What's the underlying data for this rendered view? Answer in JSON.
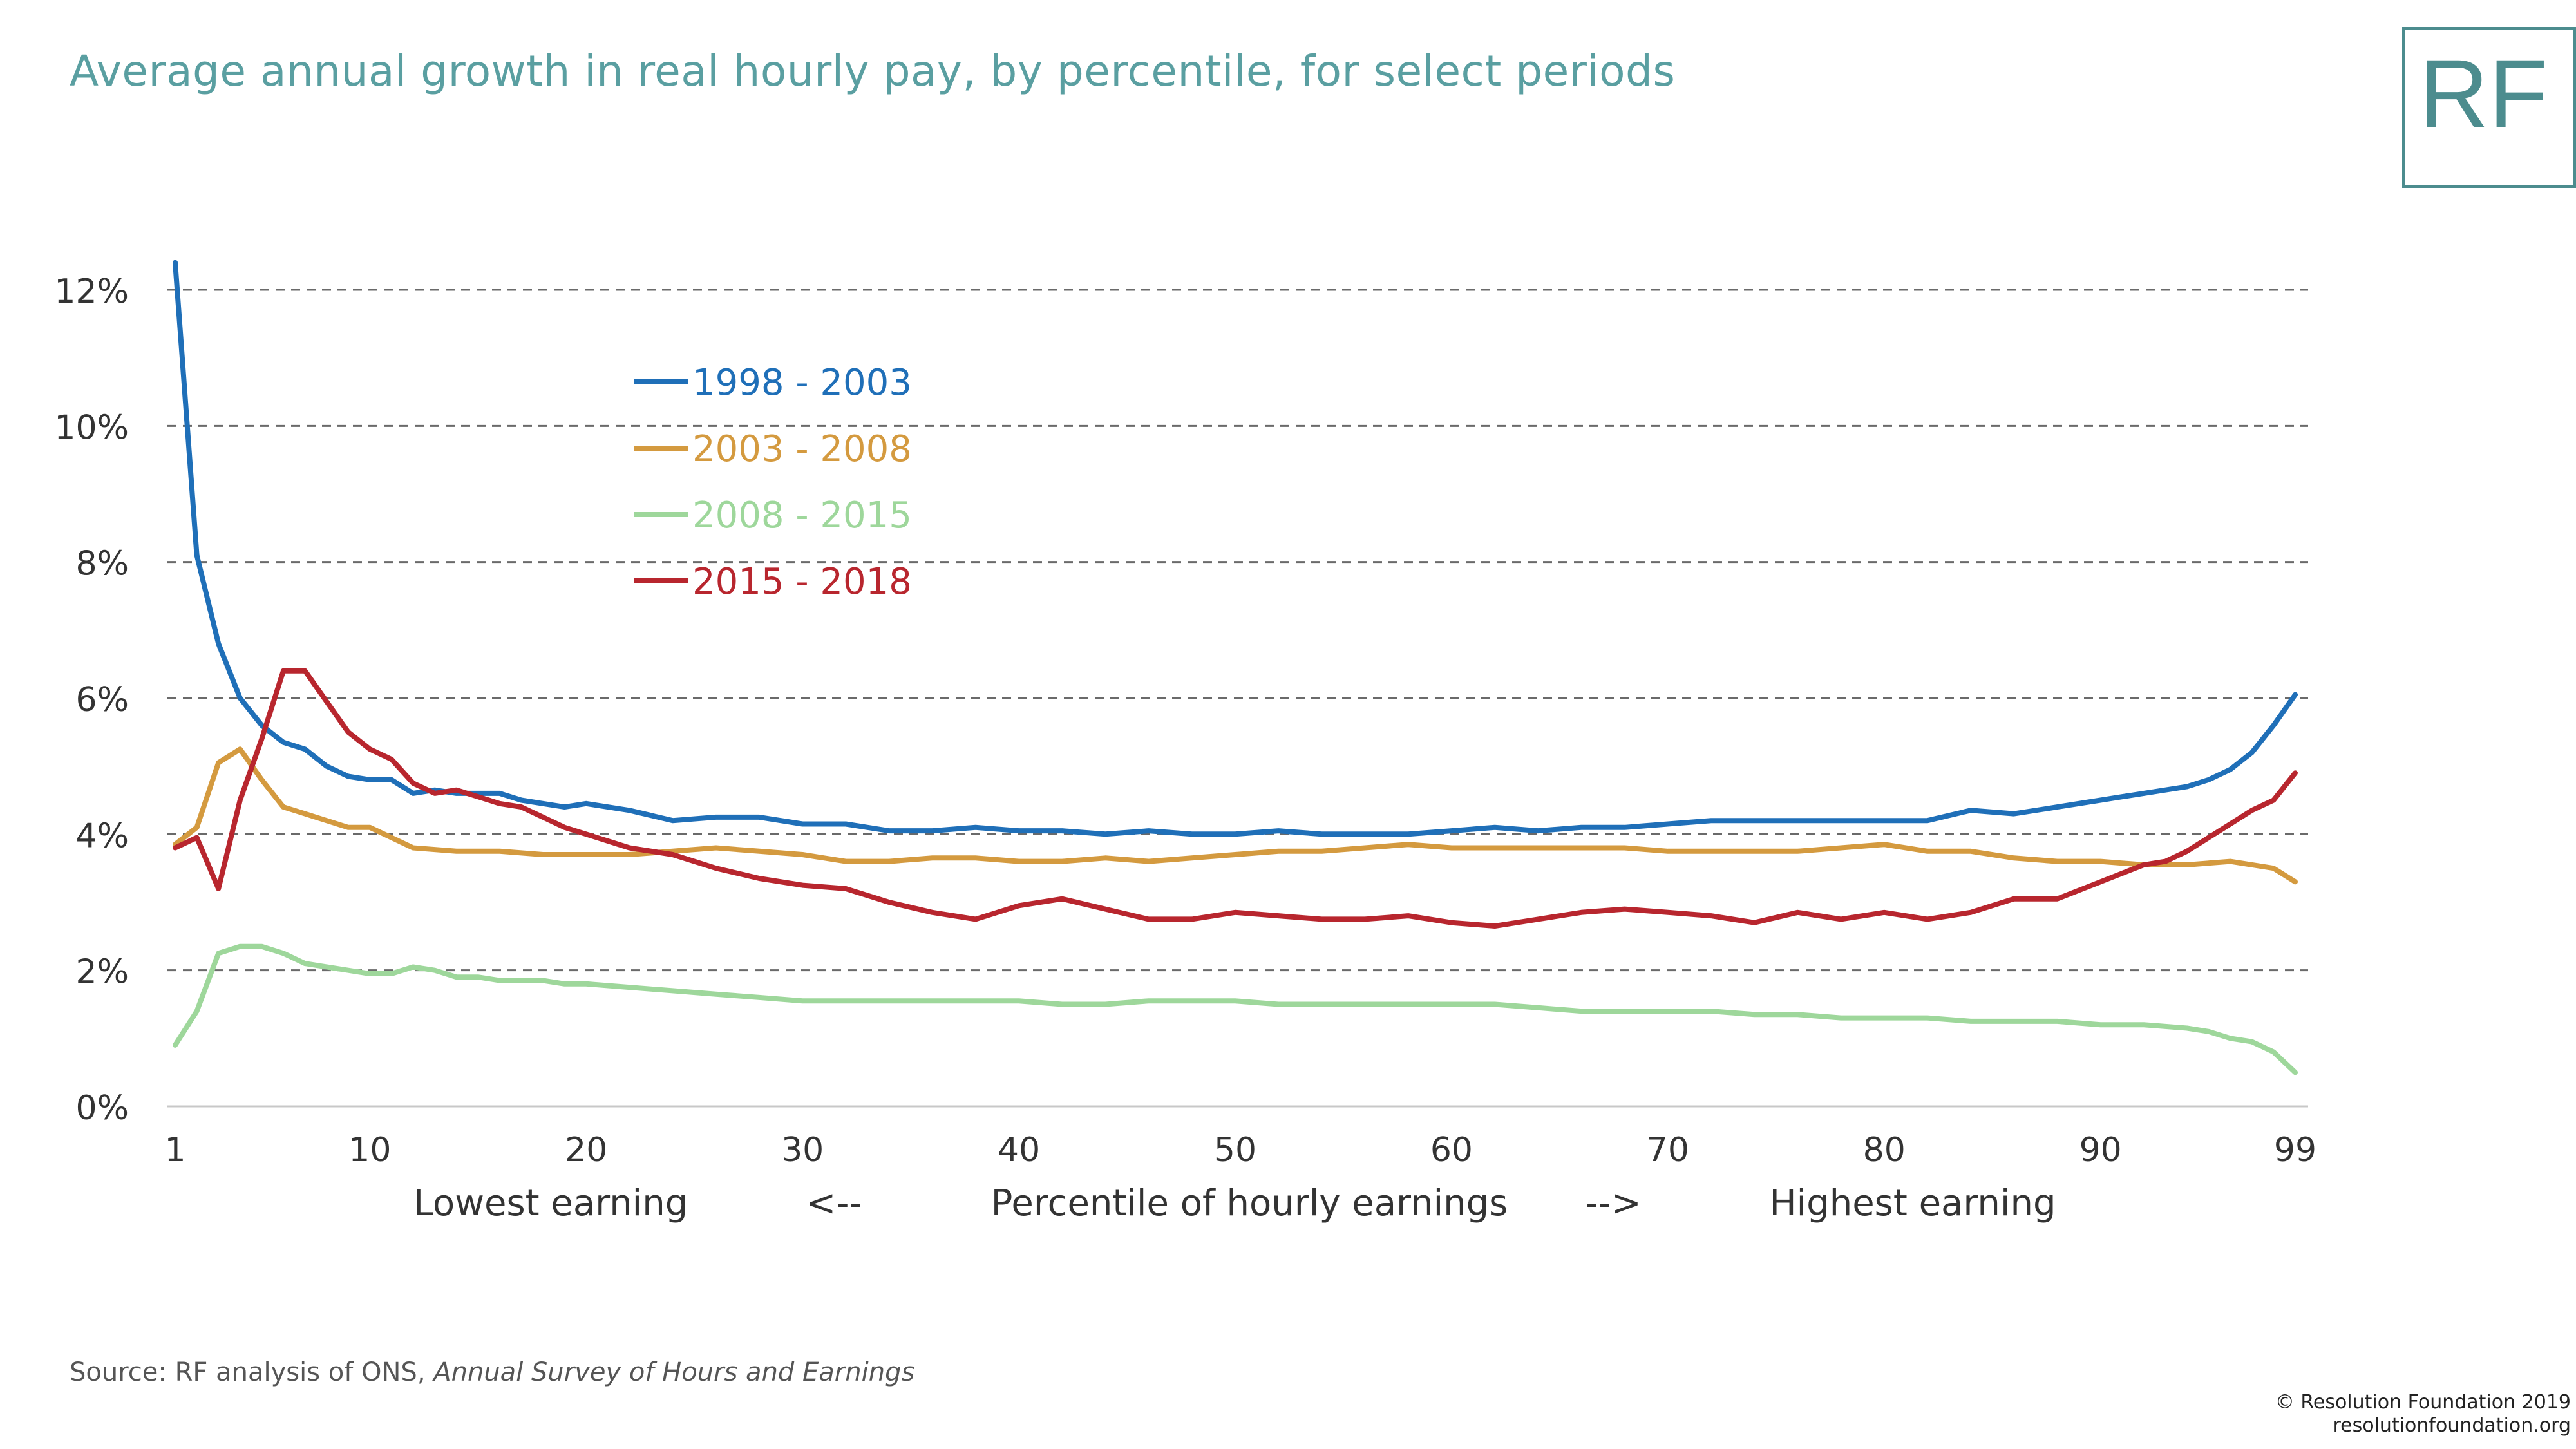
{
  "title": "Average annual growth in real hourly pay, by percentile, for select periods",
  "logo": "RF",
  "source": {
    "prefix": "Source: RF analysis of ONS, ",
    "italic": "Annual Survey of Hours and Earnings"
  },
  "copyright": {
    "line1": "© Resolution Foundation 2019",
    "line2": "resolutionfoundation.org"
  },
  "colors": {
    "title": "#5a9fa1",
    "s1998": "#1f6fb8",
    "s2003": "#d49a3f",
    "s2008": "#9ed79b",
    "s2015": "#b8262e",
    "grid": "#6a6a6a",
    "text": "#333333"
  },
  "chart_data": {
    "type": "line",
    "title": "Average annual growth in real hourly pay, by percentile, for select periods",
    "xlabel": "Percentile of hourly earnings",
    "xlabel_left": "Lowest earning",
    "xlabel_left_arrow": "<--",
    "xlabel_right_arrow": "-->",
    "xlabel_right": "Highest earning",
    "ylabel": "",
    "xlim": [
      1,
      99
    ],
    "ylim": [
      0,
      12
    ],
    "grid": true,
    "legend_position": "upper-left-inside",
    "x_ticks": [
      1,
      10,
      20,
      30,
      40,
      50,
      60,
      70,
      80,
      90,
      99
    ],
    "y_ticks": [
      0,
      2,
      4,
      6,
      8,
      10,
      12
    ],
    "y_tick_labels": [
      "0%",
      "2%",
      "4%",
      "6%",
      "8%",
      "10%",
      "12%"
    ],
    "series": [
      {
        "name": "1998 - 2003",
        "x": [
          1,
          2,
          3,
          4,
          5,
          6,
          7,
          8,
          9,
          10,
          11,
          12,
          13,
          14,
          15,
          16,
          17,
          18,
          19,
          20,
          22,
          24,
          26,
          28,
          30,
          32,
          34,
          36,
          38,
          40,
          42,
          44,
          46,
          48,
          50,
          52,
          54,
          56,
          58,
          60,
          62,
          64,
          66,
          68,
          70,
          72,
          74,
          76,
          78,
          80,
          82,
          84,
          86,
          88,
          90,
          92,
          94,
          95,
          96,
          97,
          98,
          99
        ],
        "y": [
          12.4,
          8.1,
          6.8,
          6.0,
          5.6,
          5.35,
          5.25,
          5.0,
          4.85,
          4.8,
          4.8,
          4.6,
          4.65,
          4.6,
          4.6,
          4.6,
          4.5,
          4.45,
          4.4,
          4.45,
          4.35,
          4.2,
          4.25,
          4.25,
          4.15,
          4.15,
          4.05,
          4.05,
          4.1,
          4.05,
          4.05,
          4.0,
          4.05,
          4.0,
          4.0,
          4.05,
          4.0,
          4.0,
          4.0,
          4.05,
          4.1,
          4.05,
          4.1,
          4.1,
          4.15,
          4.2,
          4.2,
          4.2,
          4.2,
          4.2,
          4.2,
          4.35,
          4.3,
          4.4,
          4.5,
          4.6,
          4.7,
          4.8,
          4.95,
          5.2,
          5.6,
          6.05
        ]
      },
      {
        "name": "2003 - 2008",
        "x": [
          1,
          2,
          3,
          4,
          5,
          6,
          7,
          8,
          9,
          10,
          11,
          12,
          14,
          16,
          18,
          20,
          22,
          24,
          26,
          28,
          30,
          32,
          34,
          36,
          38,
          40,
          42,
          44,
          46,
          48,
          50,
          52,
          54,
          56,
          58,
          60,
          62,
          64,
          66,
          68,
          70,
          72,
          74,
          76,
          78,
          80,
          82,
          84,
          86,
          88,
          90,
          92,
          94,
          96,
          98,
          99
        ],
        "y": [
          3.85,
          4.1,
          5.05,
          5.25,
          4.8,
          4.4,
          4.3,
          4.2,
          4.1,
          4.1,
          3.95,
          3.8,
          3.75,
          3.75,
          3.7,
          3.7,
          3.7,
          3.75,
          3.8,
          3.75,
          3.7,
          3.6,
          3.6,
          3.65,
          3.65,
          3.6,
          3.6,
          3.65,
          3.6,
          3.65,
          3.7,
          3.75,
          3.75,
          3.8,
          3.85,
          3.8,
          3.8,
          3.8,
          3.8,
          3.8,
          3.75,
          3.75,
          3.75,
          3.75,
          3.8,
          3.85,
          3.75,
          3.75,
          3.65,
          3.6,
          3.6,
          3.55,
          3.55,
          3.6,
          3.5,
          3.3
        ]
      },
      {
        "name": "2008 - 2015",
        "x": [
          1,
          2,
          3,
          4,
          5,
          6,
          7,
          8,
          9,
          10,
          11,
          12,
          13,
          14,
          15,
          16,
          17,
          18,
          19,
          20,
          22,
          24,
          26,
          28,
          30,
          32,
          34,
          36,
          38,
          40,
          42,
          44,
          46,
          48,
          50,
          52,
          54,
          56,
          58,
          60,
          62,
          64,
          66,
          68,
          70,
          72,
          74,
          76,
          78,
          80,
          82,
          84,
          86,
          88,
          90,
          92,
          94,
          95,
          96,
          97,
          98,
          99
        ],
        "y": [
          0.9,
          1.4,
          2.25,
          2.35,
          2.35,
          2.25,
          2.1,
          2.05,
          2.0,
          1.95,
          1.95,
          2.05,
          2.0,
          1.9,
          1.9,
          1.85,
          1.85,
          1.85,
          1.8,
          1.8,
          1.75,
          1.7,
          1.65,
          1.6,
          1.55,
          1.55,
          1.55,
          1.55,
          1.55,
          1.55,
          1.5,
          1.5,
          1.55,
          1.55,
          1.55,
          1.5,
          1.5,
          1.5,
          1.5,
          1.5,
          1.5,
          1.45,
          1.4,
          1.4,
          1.4,
          1.4,
          1.35,
          1.35,
          1.3,
          1.3,
          1.3,
          1.25,
          1.25,
          1.25,
          1.2,
          1.2,
          1.15,
          1.1,
          1.0,
          0.95,
          0.8,
          0.5
        ]
      },
      {
        "name": "2015 - 2018",
        "x": [
          1,
          2,
          3,
          4,
          5,
          6,
          7,
          8,
          9,
          10,
          11,
          12,
          13,
          14,
          15,
          16,
          17,
          18,
          19,
          20,
          22,
          24,
          26,
          28,
          30,
          32,
          34,
          36,
          38,
          40,
          42,
          44,
          46,
          48,
          50,
          52,
          54,
          56,
          58,
          60,
          62,
          64,
          66,
          68,
          70,
          72,
          74,
          76,
          78,
          80,
          82,
          84,
          86,
          88,
          90,
          92,
          93,
          94,
          95,
          96,
          97,
          98,
          99
        ],
        "y": [
          3.8,
          3.95,
          3.2,
          4.5,
          5.4,
          6.4,
          6.4,
          5.95,
          5.5,
          5.25,
          5.1,
          4.75,
          4.6,
          4.65,
          4.55,
          4.45,
          4.4,
          4.25,
          4.1,
          4.0,
          3.8,
          3.7,
          3.5,
          3.35,
          3.25,
          3.2,
          3.0,
          2.85,
          2.75,
          2.95,
          3.05,
          2.9,
          2.75,
          2.75,
          2.85,
          2.8,
          2.75,
          2.75,
          2.8,
          2.7,
          2.65,
          2.75,
          2.85,
          2.9,
          2.85,
          2.8,
          2.7,
          2.85,
          2.75,
          2.85,
          2.75,
          2.85,
          3.05,
          3.05,
          3.3,
          3.55,
          3.6,
          3.75,
          3.95,
          4.15,
          4.35,
          4.5,
          4.9
        ]
      }
    ]
  }
}
